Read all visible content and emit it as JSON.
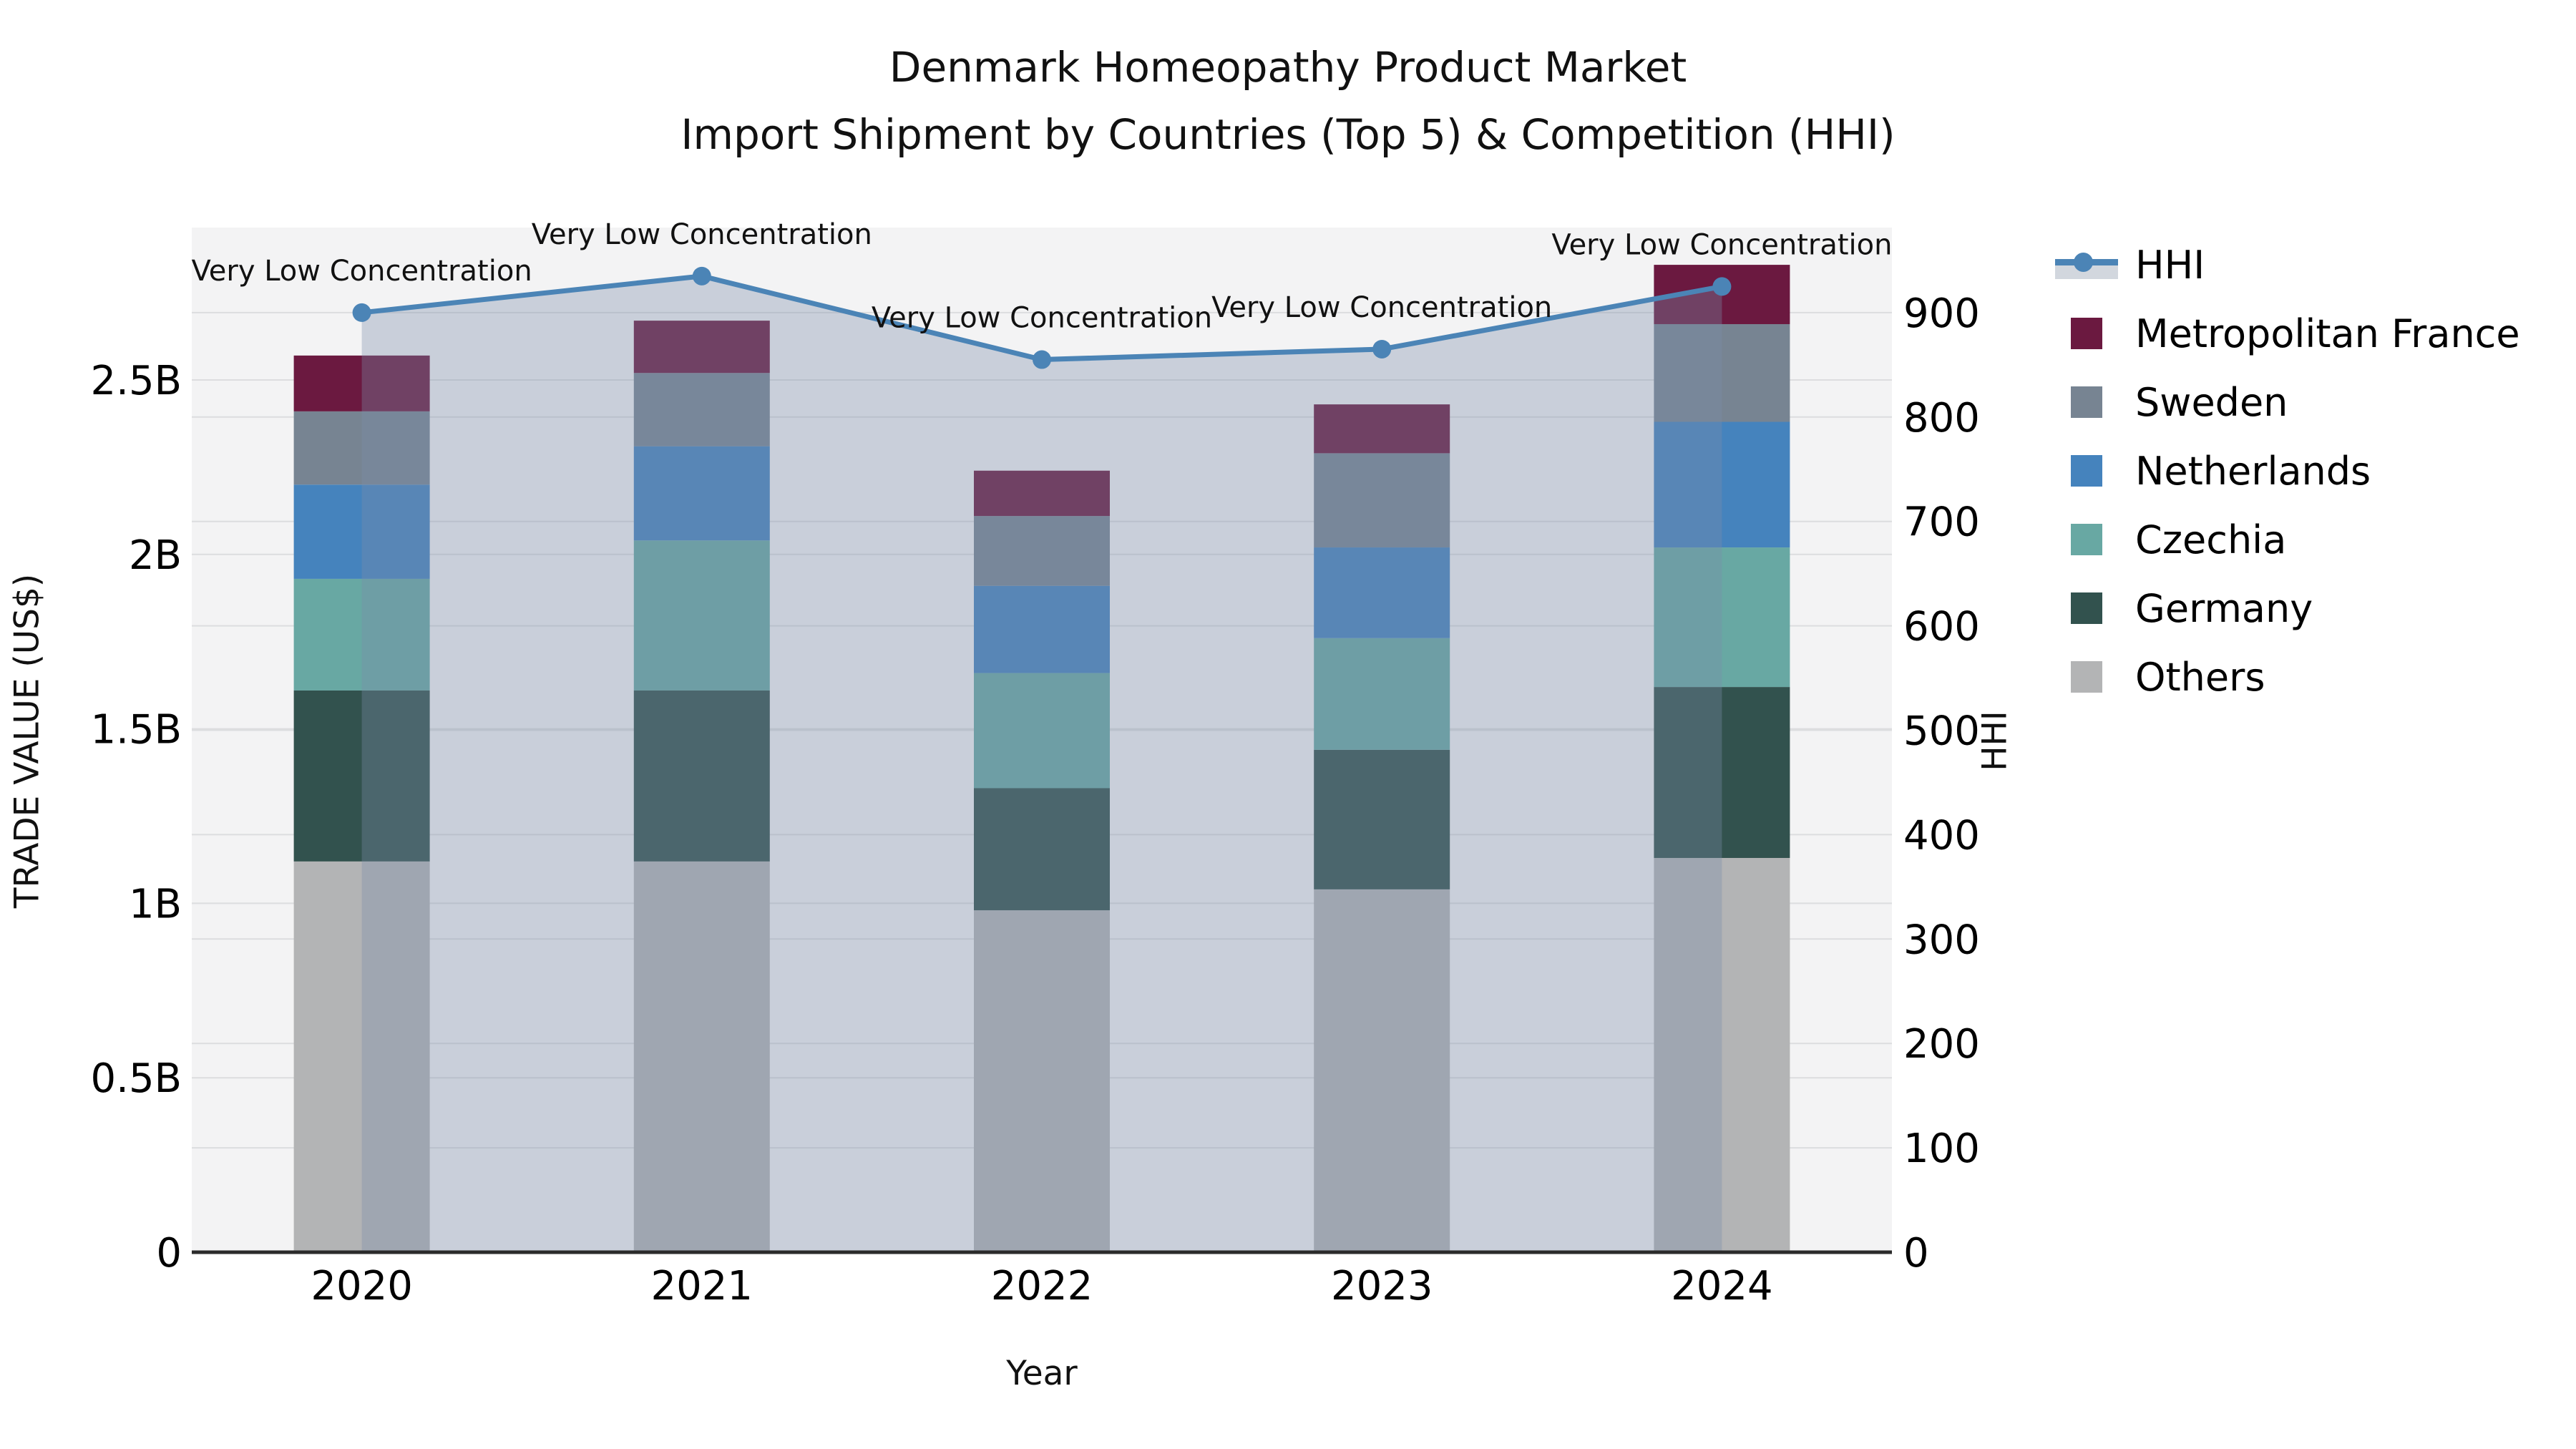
{
  "figure": {
    "title_line1": "Denmark Homeopathy Product Market",
    "title_line2": "Import Shipment by Countries (Top 5) & Competition (HHI)",
    "x_axis_label": "Year",
    "y_left_axis_label": "TRADE VALUE (US$)",
    "y_right_axis_label": "HHI"
  },
  "legend": {
    "position": "right",
    "items": [
      {
        "label": "HHI",
        "type": "line",
        "color": "#4b84b6",
        "band_color": "#d2d7de"
      },
      {
        "label": "Metropolitan France",
        "type": "swatch",
        "color": "#6b1940"
      },
      {
        "label": "Sweden",
        "type": "swatch",
        "color": "#778492"
      },
      {
        "label": "Netherlands",
        "type": "swatch",
        "color": "#4583bd"
      },
      {
        "label": "Czechia",
        "type": "swatch",
        "color": "#68a8a3"
      },
      {
        "label": "Germany",
        "type": "swatch",
        "color": "#32524e"
      },
      {
        "label": "Others",
        "type": "swatch",
        "color": "#b3b4b5"
      }
    ]
  },
  "chart_data": {
    "type": "bar+line",
    "title": "Denmark Homeopathy Product Market\nImport Shipment by Countries (Top 5) & Competition (HHI)",
    "xlabel": "Year",
    "categories": [
      "2020",
      "2021",
      "2022",
      "2023",
      "2024"
    ],
    "values_unit": "billion US$",
    "stack_order_bottom_to_top": [
      "Others",
      "Germany",
      "Czechia",
      "Netherlands",
      "Sweden",
      "Metropolitan France"
    ],
    "series": [
      {
        "name": "Others",
        "color": "#b3b4b5",
        "values": [
          1.12,
          1.12,
          0.98,
          1.04,
          1.13
        ]
      },
      {
        "name": "Germany",
        "color": "#32524e",
        "values": [
          0.49,
          0.49,
          0.35,
          0.4,
          0.49
        ]
      },
      {
        "name": "Czechia",
        "color": "#68a8a3",
        "values": [
          0.32,
          0.43,
          0.33,
          0.32,
          0.4
        ]
      },
      {
        "name": "Netherlands",
        "color": "#4583bd",
        "values": [
          0.27,
          0.27,
          0.25,
          0.26,
          0.36
        ]
      },
      {
        "name": "Sweden",
        "color": "#778492",
        "values": [
          0.21,
          0.21,
          0.2,
          0.27,
          0.28
        ]
      },
      {
        "name": "Metropolitan France",
        "color": "#6b1940",
        "values": [
          0.16,
          0.15,
          0.13,
          0.14,
          0.17
        ]
      }
    ],
    "bar_totals": [
      2.57,
      2.67,
      2.24,
      2.43,
      2.83
    ],
    "line": {
      "name": "HHI",
      "color": "#4b84b6",
      "area_color": "rgba(122,140,168,0.35)",
      "values": [
        900,
        935,
        855,
        865,
        925
      ],
      "annotations": [
        "Very Low Concentration",
        "Very Low Concentration",
        "Very Low Concentration",
        "Very Low Concentration",
        "Very Low Concentration"
      ]
    },
    "y_left": {
      "label": "TRADE VALUE (US$)",
      "range": [
        0,
        2.94
      ],
      "ticks": [
        {
          "v": 0,
          "label": "0"
        },
        {
          "v": 0.5,
          "label": "0.5B"
        },
        {
          "v": 1,
          "label": "1B"
        },
        {
          "v": 1.5,
          "label": "1.5B"
        },
        {
          "v": 2,
          "label": "2B"
        },
        {
          "v": 2.5,
          "label": "2.5B"
        }
      ]
    },
    "y_right": {
      "label": "HHI",
      "range": [
        0,
        981
      ],
      "ticks": [
        {
          "v": 0,
          "label": "0"
        },
        {
          "v": 100,
          "label": "100"
        },
        {
          "v": 200,
          "label": "200"
        },
        {
          "v": 300,
          "label": "300"
        },
        {
          "v": 400,
          "label": "400"
        },
        {
          "v": 500,
          "label": "500"
        },
        {
          "v": 600,
          "label": "600"
        },
        {
          "v": 700,
          "label": "700"
        },
        {
          "v": 800,
          "label": "800"
        },
        {
          "v": 900,
          "label": "900"
        }
      ]
    },
    "grid": true,
    "plot_bg": "#f3f3f4",
    "grid_color": "#dcdddf",
    "axis_line_color": "#2b2b2b",
    "legend_position": "right"
  }
}
